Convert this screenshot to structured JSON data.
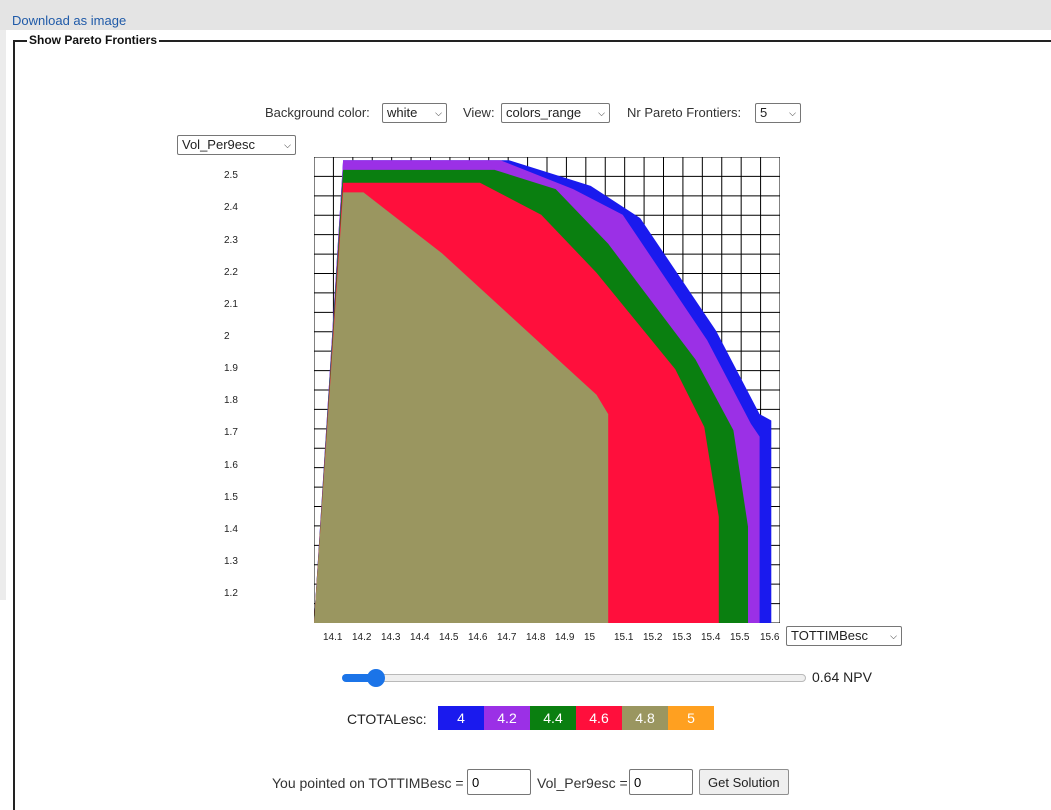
{
  "download_link": "Download as image",
  "panel_title": "Show Pareto Frontiers",
  "controls": {
    "bg_label": "Background color:",
    "bg_value": "white",
    "view_label": "View:",
    "view_value": "colors_range",
    "nr_label": "Nr Pareto Frontiers:",
    "nr_value": "5"
  },
  "y_axis_select": "Vol_Per9esc",
  "x_axis_select": "TOTTIMBesc",
  "chart_data": {
    "type": "area",
    "x_variable": "TOTTIMBesc",
    "y_variable": "Vol_Per9esc",
    "y_ticks": [
      "2.5",
      "2.4",
      "2.3",
      "2.2",
      "2.1",
      "2",
      "1.9",
      "1.8",
      "1.7",
      "1.6",
      "1.5",
      "1.4",
      "1.3",
      "1.2"
    ],
    "x_ticks": [
      "14.1",
      "14.2",
      "14.3",
      "14.4",
      "14.5",
      "14.6",
      "14.7",
      "14.8",
      "14.9",
      "15",
      "15.1",
      "15.2",
      "15.3",
      "15.4",
      "15.5",
      "15.6"
    ],
    "grid": true,
    "series": [
      {
        "name": "4",
        "color": "#1a1aee",
        "points": [
          [
            14.1,
            2.55
          ],
          [
            14.67,
            2.55
          ],
          [
            14.95,
            2.47
          ],
          [
            15.12,
            2.37
          ],
          [
            15.38,
            2.02
          ],
          [
            15.53,
            1.76
          ],
          [
            15.57,
            1.74
          ],
          [
            15.57,
            1.11
          ]
        ]
      },
      {
        "name": "4.2",
        "color": "#9b30e6",
        "points": [
          [
            14.1,
            2.55
          ],
          [
            14.64,
            2.55
          ],
          [
            14.89,
            2.46
          ],
          [
            15.06,
            2.38
          ],
          [
            15.35,
            1.99
          ],
          [
            15.5,
            1.73
          ],
          [
            15.53,
            1.69
          ],
          [
            15.53,
            1.11
          ]
        ]
      },
      {
        "name": "4.4",
        "color": "#0a7f10",
        "points": [
          [
            14.1,
            2.52
          ],
          [
            14.62,
            2.52
          ],
          [
            14.83,
            2.46
          ],
          [
            15.01,
            2.29
          ],
          [
            15.31,
            1.93
          ],
          [
            15.44,
            1.71
          ],
          [
            15.49,
            1.41
          ],
          [
            15.49,
            1.11
          ]
        ]
      },
      {
        "name": "4.6",
        "color": "#ff0f3c",
        "points": [
          [
            14.1,
            2.48
          ],
          [
            14.57,
            2.48
          ],
          [
            14.78,
            2.38
          ],
          [
            14.97,
            2.2
          ],
          [
            15.24,
            1.9
          ],
          [
            15.34,
            1.72
          ],
          [
            15.39,
            1.44
          ],
          [
            15.39,
            1.11
          ]
        ]
      },
      {
        "name": "4.8",
        "color": "#9a9660",
        "points": [
          [
            14.1,
            2.45
          ],
          [
            14.17,
            2.45
          ],
          [
            14.44,
            2.26
          ],
          [
            14.97,
            1.82
          ],
          [
            15.01,
            1.76
          ],
          [
            15.01,
            1.11
          ]
        ]
      }
    ],
    "xlim": [
      14.0,
      15.6
    ],
    "ylim": [
      1.11,
      2.56
    ]
  },
  "slider": {
    "value": "0.64 NPV",
    "fraction": 0.07
  },
  "legend": {
    "label": "CTOTALesc:",
    "items": [
      {
        "value": "4",
        "color": "#1a1aee"
      },
      {
        "value": "4.2",
        "color": "#9b30e6"
      },
      {
        "value": "4.4",
        "color": "#0a7f10"
      },
      {
        "value": "4.6",
        "color": "#ff0f3c"
      },
      {
        "value": "4.8",
        "color": "#9a9660"
      },
      {
        "value": "5",
        "color": "#ffa020"
      }
    ]
  },
  "pointer": {
    "label_x": "You pointed on TOTTIMBesc =",
    "value_x": "0",
    "label_y": "Vol_Per9esc =",
    "value_y": "0",
    "button": "Get Solution"
  }
}
